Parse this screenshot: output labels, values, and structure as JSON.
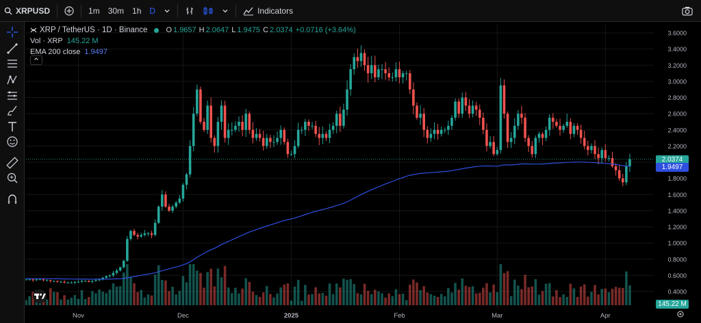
{
  "toolbar": {
    "symbol": "XRPUSD",
    "timeframes": [
      "1m",
      "30m",
      "1h",
      "D"
    ],
    "active_timeframe": "D",
    "indicators_label": "Indicators"
  },
  "legend": {
    "title": "XRP / TetherUS · 1D · Binance",
    "ohlc": {
      "o_label": "O",
      "o": "1.9657",
      "h_label": "H",
      "h": "2.0647",
      "l_label": "L",
      "l": "1.9475",
      "c_label": "C",
      "c": "2.0374",
      "change": "+0.0716 (+3.64%)"
    },
    "vol_label": "Vol · XRP",
    "vol_value": "145.22 M",
    "ema_label": "EMA 200 close",
    "ema_value": "1.9497"
  },
  "colors": {
    "up": "#26a69a",
    "down": "#ef5350",
    "ema": "#2f4fe0",
    "bg": "#000000"
  },
  "price_tags": {
    "close": "2.0374",
    "ema": "1.9497",
    "volume": "145.22 M"
  },
  "chart_data": {
    "type": "candlestick",
    "y_axis": {
      "ticks": [
        "3.6000",
        "3.4000",
        "3.2000",
        "3.0000",
        "2.8000",
        "2.6000",
        "2.4000",
        "2.2000",
        "2.0000",
        "1.8000",
        "1.6000",
        "1.4000",
        "1.2000",
        "1.0000",
        "0.8000",
        "0.6000",
        "0.4000"
      ],
      "range": [
        0.28,
        3.7
      ]
    },
    "x_axis": {
      "labels": [
        {
          "text": "Nov",
          "day": 15
        },
        {
          "text": "Dec",
          "day": 45
        },
        {
          "text": "2025",
          "day": 76
        },
        {
          "text": "Feb",
          "day": 107
        },
        {
          "text": "Mar",
          "day": 135
        },
        {
          "text": "Apr",
          "day": 166
        }
      ],
      "days": 178
    },
    "closes": [
      0.55,
      0.55,
      0.54,
      0.55,
      0.55,
      0.54,
      0.54,
      0.53,
      0.53,
      0.52,
      0.52,
      0.51,
      0.51,
      0.51,
      0.52,
      0.52,
      0.53,
      0.53,
      0.52,
      0.53,
      0.54,
      0.55,
      0.57,
      0.59,
      0.6,
      0.63,
      0.66,
      0.7,
      0.78,
      1.05,
      1.15,
      1.1,
      1.08,
      1.1,
      1.12,
      1.12,
      1.1,
      1.25,
      1.45,
      1.6,
      1.45,
      1.4,
      1.45,
      1.5,
      1.55,
      1.72,
      1.85,
      2.2,
      2.6,
      2.9,
      2.5,
      2.4,
      2.7,
      2.3,
      2.2,
      2.5,
      2.7,
      2.3,
      2.4,
      2.4,
      2.45,
      2.5,
      2.4,
      2.6,
      2.4,
      2.3,
      2.35,
      2.3,
      2.2,
      2.3,
      2.25,
      2.25,
      2.3,
      2.4,
      2.25,
      2.1,
      2.1,
      2.2,
      2.4,
      2.4,
      2.5,
      2.45,
      2.45,
      2.35,
      2.3,
      2.35,
      2.3,
      2.4,
      2.45,
      2.6,
      2.45,
      2.65,
      2.9,
      3.15,
      3.3,
      3.25,
      3.35,
      3.2,
      3.1,
      3.2,
      3.05,
      3.15,
      3.15,
      3.1,
      3.05,
      3.05,
      3.15,
      3.05,
      3.1,
      3.1,
      2.9,
      2.7,
      2.55,
      2.6,
      2.4,
      2.3,
      2.35,
      2.4,
      2.35,
      2.4,
      2.4,
      2.45,
      2.55,
      2.75,
      2.6,
      2.8,
      2.7,
      2.6,
      2.7,
      2.65,
      2.55,
      2.4,
      2.2,
      2.25,
      2.1,
      2.15,
      2.95,
      2.6,
      2.25,
      2.3,
      2.45,
      2.6,
      2.55,
      2.3,
      2.2,
      2.1,
      2.3,
      2.35,
      2.3,
      2.4,
      2.55,
      2.5,
      2.45,
      2.4,
      2.45,
      2.5,
      2.35,
      2.45,
      2.4,
      2.3,
      2.2,
      2.15,
      2.2,
      2.1,
      2.05,
      2.15,
      2.05,
      2.05,
      1.95,
      1.9,
      1.8,
      1.75,
      1.95,
      2.0374
    ],
    "ema200": {
      "start": 0.56,
      "end": 1.9497
    }
  }
}
